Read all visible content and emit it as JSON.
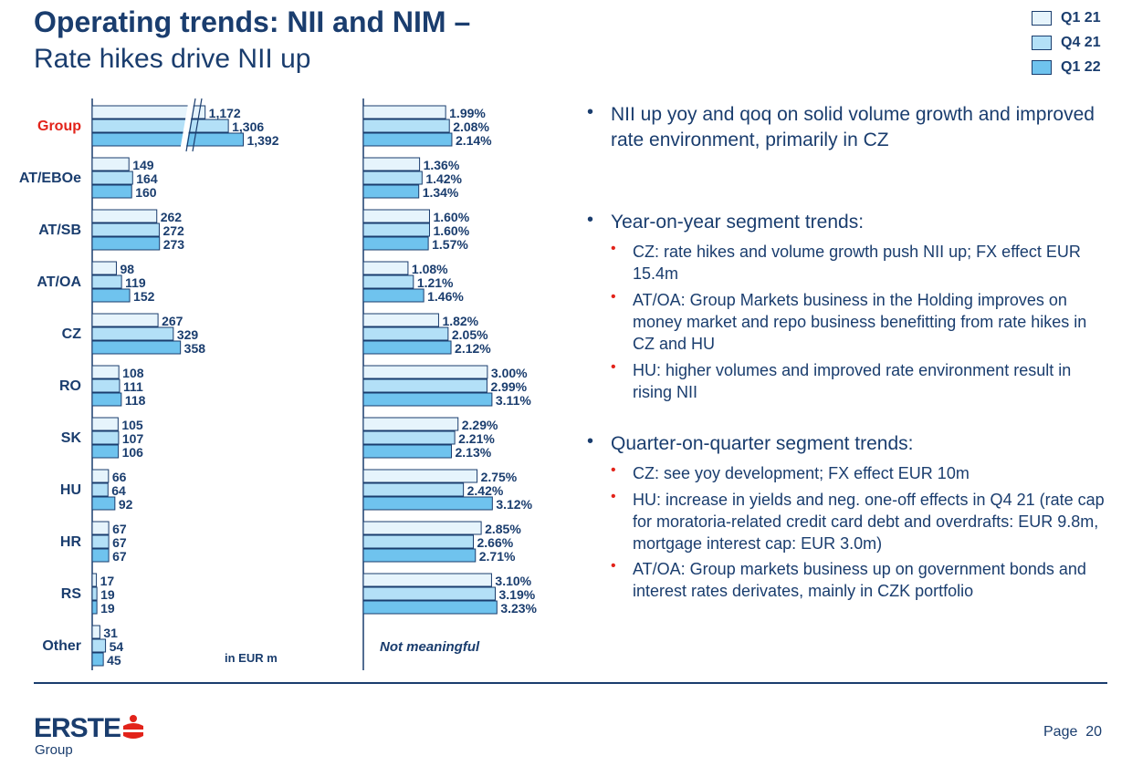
{
  "header": {
    "title": "Operating trends: NII and NIM –",
    "subtitle": "Rate hikes drive NII up"
  },
  "legend": [
    {
      "label": "Q1 21",
      "color": "#e6f4fc"
    },
    {
      "label": "Q4 21",
      "color": "#b3e0f7"
    },
    {
      "label": "Q1 22",
      "color": "#6fc3ee"
    }
  ],
  "chart_data": [
    {
      "type": "bar",
      "orientation": "horizontal",
      "categories": [
        "Group",
        "AT/EBOe",
        "AT/SB",
        "AT/OA",
        "CZ",
        "RO",
        "SK",
        "HU",
        "HR",
        "RS",
        "Other"
      ],
      "highlight_category": "Group",
      "series": [
        {
          "name": "Q1 21",
          "values": [
            1172,
            149,
            262,
            98,
            267,
            108,
            105,
            66,
            67,
            17,
            31
          ]
        },
        {
          "name": "Q4 21",
          "values": [
            1306,
            164,
            272,
            119,
            329,
            111,
            107,
            64,
            67,
            19,
            54
          ]
        },
        {
          "name": "Q1 22",
          "values": [
            1392,
            160,
            273,
            152,
            358,
            118,
            106,
            92,
            67,
            19,
            45
          ]
        }
      ],
      "data_labels": [
        [
          "1,172",
          "149",
          "262",
          "98",
          "267",
          "108",
          "105",
          "66",
          "67",
          "17",
          "31"
        ],
        [
          "1,306",
          "164",
          "272",
          "119",
          "329",
          "111",
          "107",
          "64",
          "67",
          "19",
          "54"
        ],
        [
          "1,392",
          "160",
          "273",
          "152",
          "358",
          "118",
          "106",
          "92",
          "67",
          "19",
          "45"
        ]
      ],
      "axis_break": true,
      "unit_note": "in EUR m"
    },
    {
      "type": "bar",
      "orientation": "horizontal",
      "categories": [
        "Group",
        "AT/EBOe",
        "AT/SB",
        "AT/OA",
        "CZ",
        "RO",
        "SK",
        "HU",
        "HR",
        "RS",
        "Other"
      ],
      "series": [
        {
          "name": "Q1 21",
          "values": [
            1.99,
            1.36,
            1.6,
            1.08,
            1.82,
            3.0,
            2.29,
            2.75,
            2.85,
            3.1,
            null
          ]
        },
        {
          "name": "Q4 21",
          "values": [
            2.08,
            1.42,
            1.6,
            1.21,
            2.05,
            2.99,
            2.21,
            2.42,
            2.66,
            3.19,
            null
          ]
        },
        {
          "name": "Q1 22",
          "values": [
            2.14,
            1.34,
            1.57,
            1.46,
            2.12,
            3.11,
            2.13,
            3.12,
            2.71,
            3.23,
            null
          ]
        }
      ],
      "data_labels": [
        [
          "1.99%",
          "1.36%",
          "1.60%",
          "1.08%",
          "1.82%",
          "3.00%",
          "2.29%",
          "2.75%",
          "2.85%",
          "3.10%",
          ""
        ],
        [
          "2.08%",
          "1.42%",
          "1.60%",
          "1.21%",
          "2.05%",
          "2.99%",
          "2.21%",
          "2.42%",
          "2.66%",
          "3.19%",
          ""
        ],
        [
          "2.14%",
          "1.34%",
          "1.57%",
          "1.46%",
          "2.12%",
          "3.11%",
          "2.13%",
          "3.12%",
          "2.71%",
          "3.23%",
          ""
        ]
      ],
      "other_note": "Not meaningful"
    }
  ],
  "bullets": [
    {
      "text": "NII up yoy and qoq on solid volume growth and improved rate environment, primarily in CZ",
      "sub": []
    },
    {
      "text": "Year-on-year segment trends:",
      "sub": [
        "CZ: rate hikes and volume growth push NII up; FX effect EUR 15.4m",
        "AT/OA: Group Markets business in the Holding improves on money market and repo business benefitting from rate hikes in CZ and HU",
        "HU: higher volumes and improved rate environment result in rising NII"
      ]
    },
    {
      "text": "Quarter-on-quarter segment trends:",
      "sub": [
        "CZ: see yoy development; FX effect EUR 10m",
        "HU: increase in yields and neg. one-off effects in Q4 21 (rate cap for moratoria-related credit card debt and overdrafts: EUR 9.8m, mortgage interest cap: EUR 3.0m)",
        "AT/OA: Group markets business up on government bonds and interest rates derivates, mainly in CZK portfolio"
      ]
    }
  ],
  "footer": {
    "logo_text": "ERSTE",
    "logo_sub": "Group",
    "page_label": "Page",
    "page_number": "20"
  },
  "colors": {
    "navy": "#1a3d6e",
    "highlight_red": "#e2231a",
    "bar_outline": "#1a3d6e"
  }
}
